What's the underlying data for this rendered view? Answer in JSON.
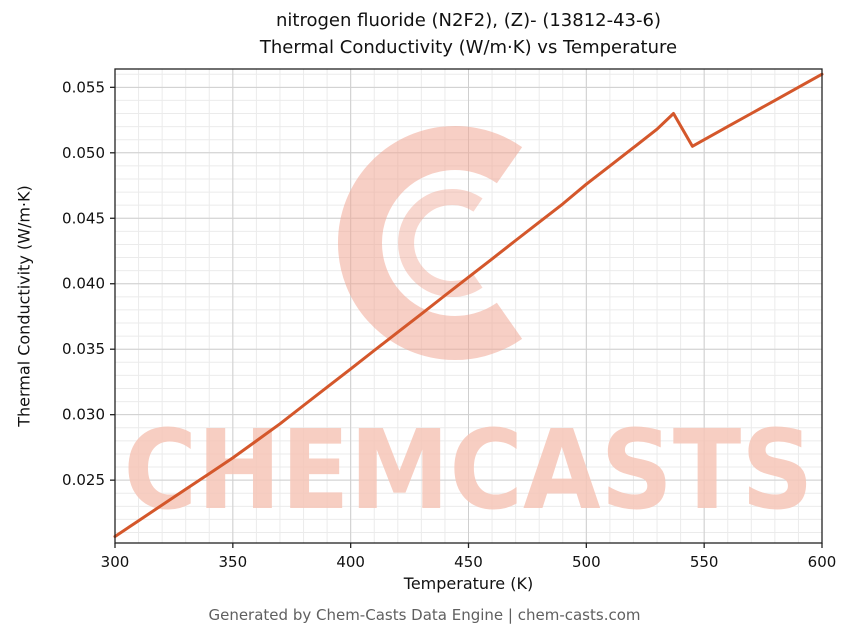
{
  "chart": {
    "title_line1": "nitrogen fluoride (N2F2), (Z)- (13812-43-6)",
    "title_line2": "Thermal Conductivity (W/m·K) vs Temperature",
    "xlabel": "Temperature (K)",
    "ylabel": "Thermal Conductivity (W/m·K)",
    "footer": "Generated by Chem-Casts Data Engine | chem-casts.com",
    "watermark_text": "CHEMCASTS"
  },
  "chart_data": {
    "type": "line",
    "title": "nitrogen fluoride (N2F2), (Z)- (13812-43-6) Thermal Conductivity (W/m·K) vs Temperature",
    "xlabel": "Temperature (K)",
    "ylabel": "Thermal Conductivity (W/m·K)",
    "x": [
      300,
      310,
      320,
      330,
      340,
      350,
      360,
      370,
      380,
      390,
      400,
      410,
      420,
      430,
      440,
      450,
      460,
      470,
      480,
      490,
      500,
      510,
      520,
      530,
      537,
      545,
      550,
      560,
      570,
      580,
      590,
      600
    ],
    "y": [
      0.0207,
      0.0219,
      0.0231,
      0.0243,
      0.0255,
      0.0267,
      0.028,
      0.0293,
      0.0307,
      0.0321,
      0.0335,
      0.0349,
      0.0363,
      0.0377,
      0.0391,
      0.0405,
      0.0419,
      0.0433,
      0.0447,
      0.0461,
      0.0476,
      0.049,
      0.0504,
      0.0518,
      0.053,
      0.0505,
      0.051,
      0.052,
      0.053,
      0.054,
      0.055,
      0.056
    ],
    "xlim": [
      300,
      600
    ],
    "ylim": [
      0.0202,
      0.0564
    ],
    "x_ticks": [
      300,
      350,
      400,
      450,
      500,
      550,
      600
    ],
    "x_tick_labels": [
      "300",
      "350",
      "400",
      "450",
      "500",
      "550",
      "600"
    ],
    "y_ticks": [
      0.025,
      0.03,
      0.035,
      0.04,
      0.045,
      0.05,
      0.055
    ],
    "y_tick_labels": [
      "0.025",
      "0.030",
      "0.035",
      "0.040",
      "0.045",
      "0.050",
      "0.055"
    ],
    "x_minor_step": 10,
    "y_minor_step": 0.001,
    "grid": true,
    "legend": false,
    "colors": {
      "line": "#d4572b",
      "major_grid": "#cfcfcf",
      "minor_grid": "#ebebeb",
      "watermark_text": "#f6c6b8",
      "watermark_logo": "#f0a795",
      "axis": "#222222"
    }
  }
}
